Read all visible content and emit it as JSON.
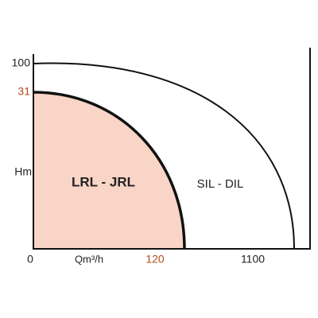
{
  "y_axis": {
    "top_label": "100",
    "mark_label": "31",
    "title": "Hm"
  },
  "x_axis": {
    "origin_label": "0",
    "title": "Qm³/h",
    "mark_label": "120",
    "end_label": "1100"
  },
  "regions": [
    {
      "label": "LRL - JRL"
    },
    {
      "label": "SIL - DIL"
    }
  ]
}
